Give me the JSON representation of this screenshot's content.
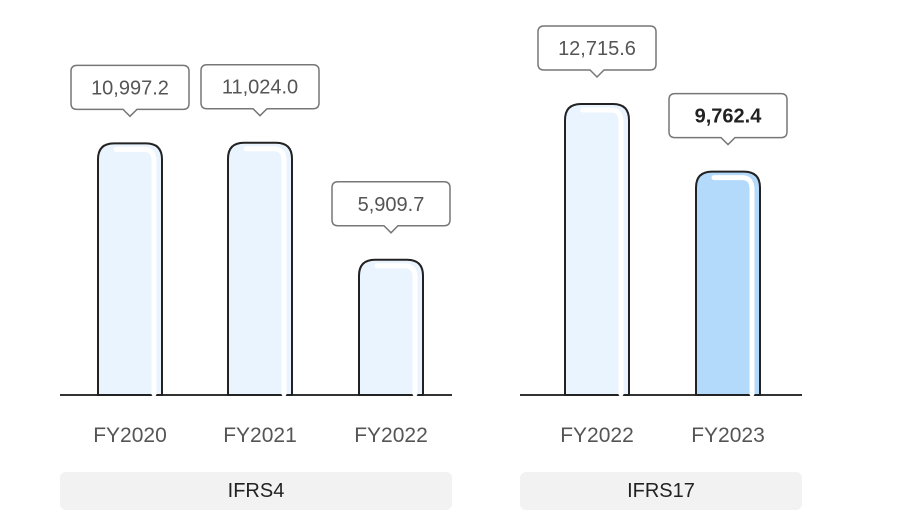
{
  "chart_data": {
    "type": "bar",
    "panels": [
      {
        "group_label": "IFRS4",
        "categories": [
          "FY2020",
          "FY2021",
          "FY2022"
        ],
        "values": [
          10997.2,
          11024.0,
          5909.7
        ],
        "value_labels": [
          "10,997.2",
          "11,024.0",
          "5,909.7"
        ],
        "highlight": [
          false,
          false,
          false
        ]
      },
      {
        "group_label": "IFRS17",
        "categories": [
          "FY2022",
          "FY2023"
        ],
        "values": [
          12715.6,
          9762.4
        ],
        "value_labels": [
          "12,715.6",
          "9,762.4"
        ],
        "highlight": [
          false,
          true
        ]
      }
    ],
    "ylim": [
      0,
      12715.6
    ],
    "grid": false,
    "legend": "none",
    "title": "",
    "xlabel": "",
    "ylabel": ""
  },
  "colors": {
    "bar_fill": "#eaf4fe",
    "bar_highlight_fill": "#b3d9fb",
    "bar_stroke": "#222222",
    "bar_shine": "#ffffff",
    "axis": "#333333",
    "callout_stroke": "#777777",
    "callout_text": "#555555",
    "callout_text_highlight": "#222222",
    "tick_text": "#555555"
  }
}
